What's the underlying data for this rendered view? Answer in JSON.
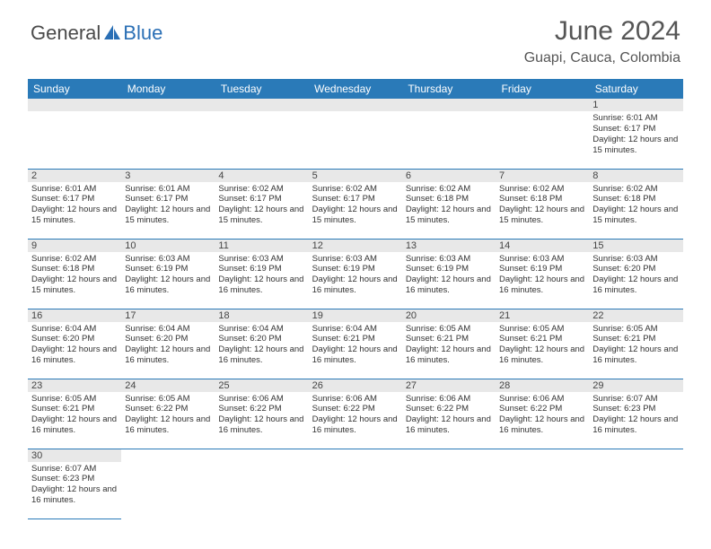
{
  "logo": {
    "part1": "General",
    "part2": "Blue"
  },
  "title": "June 2024",
  "location": "Guapi, Cauca, Colombia",
  "weekdays": [
    "Sunday",
    "Monday",
    "Tuesday",
    "Wednesday",
    "Thursday",
    "Friday",
    "Saturday"
  ],
  "colors": {
    "header_bg": "#2a7ab8",
    "header_text": "#ffffff",
    "daynum_bg": "#e8e8e8",
    "border": "#2a7ab8",
    "logo_dark": "#4a4a4a",
    "logo_blue": "#2a6fb5"
  },
  "first_weekday_index": 6,
  "days": [
    {
      "n": 1,
      "sr": "6:01 AM",
      "ss": "6:17 PM",
      "dl": "12 hours and 15 minutes."
    },
    {
      "n": 2,
      "sr": "6:01 AM",
      "ss": "6:17 PM",
      "dl": "12 hours and 15 minutes."
    },
    {
      "n": 3,
      "sr": "6:01 AM",
      "ss": "6:17 PM",
      "dl": "12 hours and 15 minutes."
    },
    {
      "n": 4,
      "sr": "6:02 AM",
      "ss": "6:17 PM",
      "dl": "12 hours and 15 minutes."
    },
    {
      "n": 5,
      "sr": "6:02 AM",
      "ss": "6:17 PM",
      "dl": "12 hours and 15 minutes."
    },
    {
      "n": 6,
      "sr": "6:02 AM",
      "ss": "6:18 PM",
      "dl": "12 hours and 15 minutes."
    },
    {
      "n": 7,
      "sr": "6:02 AM",
      "ss": "6:18 PM",
      "dl": "12 hours and 15 minutes."
    },
    {
      "n": 8,
      "sr": "6:02 AM",
      "ss": "6:18 PM",
      "dl": "12 hours and 15 minutes."
    },
    {
      "n": 9,
      "sr": "6:02 AM",
      "ss": "6:18 PM",
      "dl": "12 hours and 15 minutes."
    },
    {
      "n": 10,
      "sr": "6:03 AM",
      "ss": "6:19 PM",
      "dl": "12 hours and 16 minutes."
    },
    {
      "n": 11,
      "sr": "6:03 AM",
      "ss": "6:19 PM",
      "dl": "12 hours and 16 minutes."
    },
    {
      "n": 12,
      "sr": "6:03 AM",
      "ss": "6:19 PM",
      "dl": "12 hours and 16 minutes."
    },
    {
      "n": 13,
      "sr": "6:03 AM",
      "ss": "6:19 PM",
      "dl": "12 hours and 16 minutes."
    },
    {
      "n": 14,
      "sr": "6:03 AM",
      "ss": "6:19 PM",
      "dl": "12 hours and 16 minutes."
    },
    {
      "n": 15,
      "sr": "6:03 AM",
      "ss": "6:20 PM",
      "dl": "12 hours and 16 minutes."
    },
    {
      "n": 16,
      "sr": "6:04 AM",
      "ss": "6:20 PM",
      "dl": "12 hours and 16 minutes."
    },
    {
      "n": 17,
      "sr": "6:04 AM",
      "ss": "6:20 PM",
      "dl": "12 hours and 16 minutes."
    },
    {
      "n": 18,
      "sr": "6:04 AM",
      "ss": "6:20 PM",
      "dl": "12 hours and 16 minutes."
    },
    {
      "n": 19,
      "sr": "6:04 AM",
      "ss": "6:21 PM",
      "dl": "12 hours and 16 minutes."
    },
    {
      "n": 20,
      "sr": "6:05 AM",
      "ss": "6:21 PM",
      "dl": "12 hours and 16 minutes."
    },
    {
      "n": 21,
      "sr": "6:05 AM",
      "ss": "6:21 PM",
      "dl": "12 hours and 16 minutes."
    },
    {
      "n": 22,
      "sr": "6:05 AM",
      "ss": "6:21 PM",
      "dl": "12 hours and 16 minutes."
    },
    {
      "n": 23,
      "sr": "6:05 AM",
      "ss": "6:21 PM",
      "dl": "12 hours and 16 minutes."
    },
    {
      "n": 24,
      "sr": "6:05 AM",
      "ss": "6:22 PM",
      "dl": "12 hours and 16 minutes."
    },
    {
      "n": 25,
      "sr": "6:06 AM",
      "ss": "6:22 PM",
      "dl": "12 hours and 16 minutes."
    },
    {
      "n": 26,
      "sr": "6:06 AM",
      "ss": "6:22 PM",
      "dl": "12 hours and 16 minutes."
    },
    {
      "n": 27,
      "sr": "6:06 AM",
      "ss": "6:22 PM",
      "dl": "12 hours and 16 minutes."
    },
    {
      "n": 28,
      "sr": "6:06 AM",
      "ss": "6:22 PM",
      "dl": "12 hours and 16 minutes."
    },
    {
      "n": 29,
      "sr": "6:07 AM",
      "ss": "6:23 PM",
      "dl": "12 hours and 16 minutes."
    },
    {
      "n": 30,
      "sr": "6:07 AM",
      "ss": "6:23 PM",
      "dl": "12 hours and 16 minutes."
    }
  ],
  "labels": {
    "sunrise": "Sunrise:",
    "sunset": "Sunset:",
    "daylight": "Daylight:"
  }
}
